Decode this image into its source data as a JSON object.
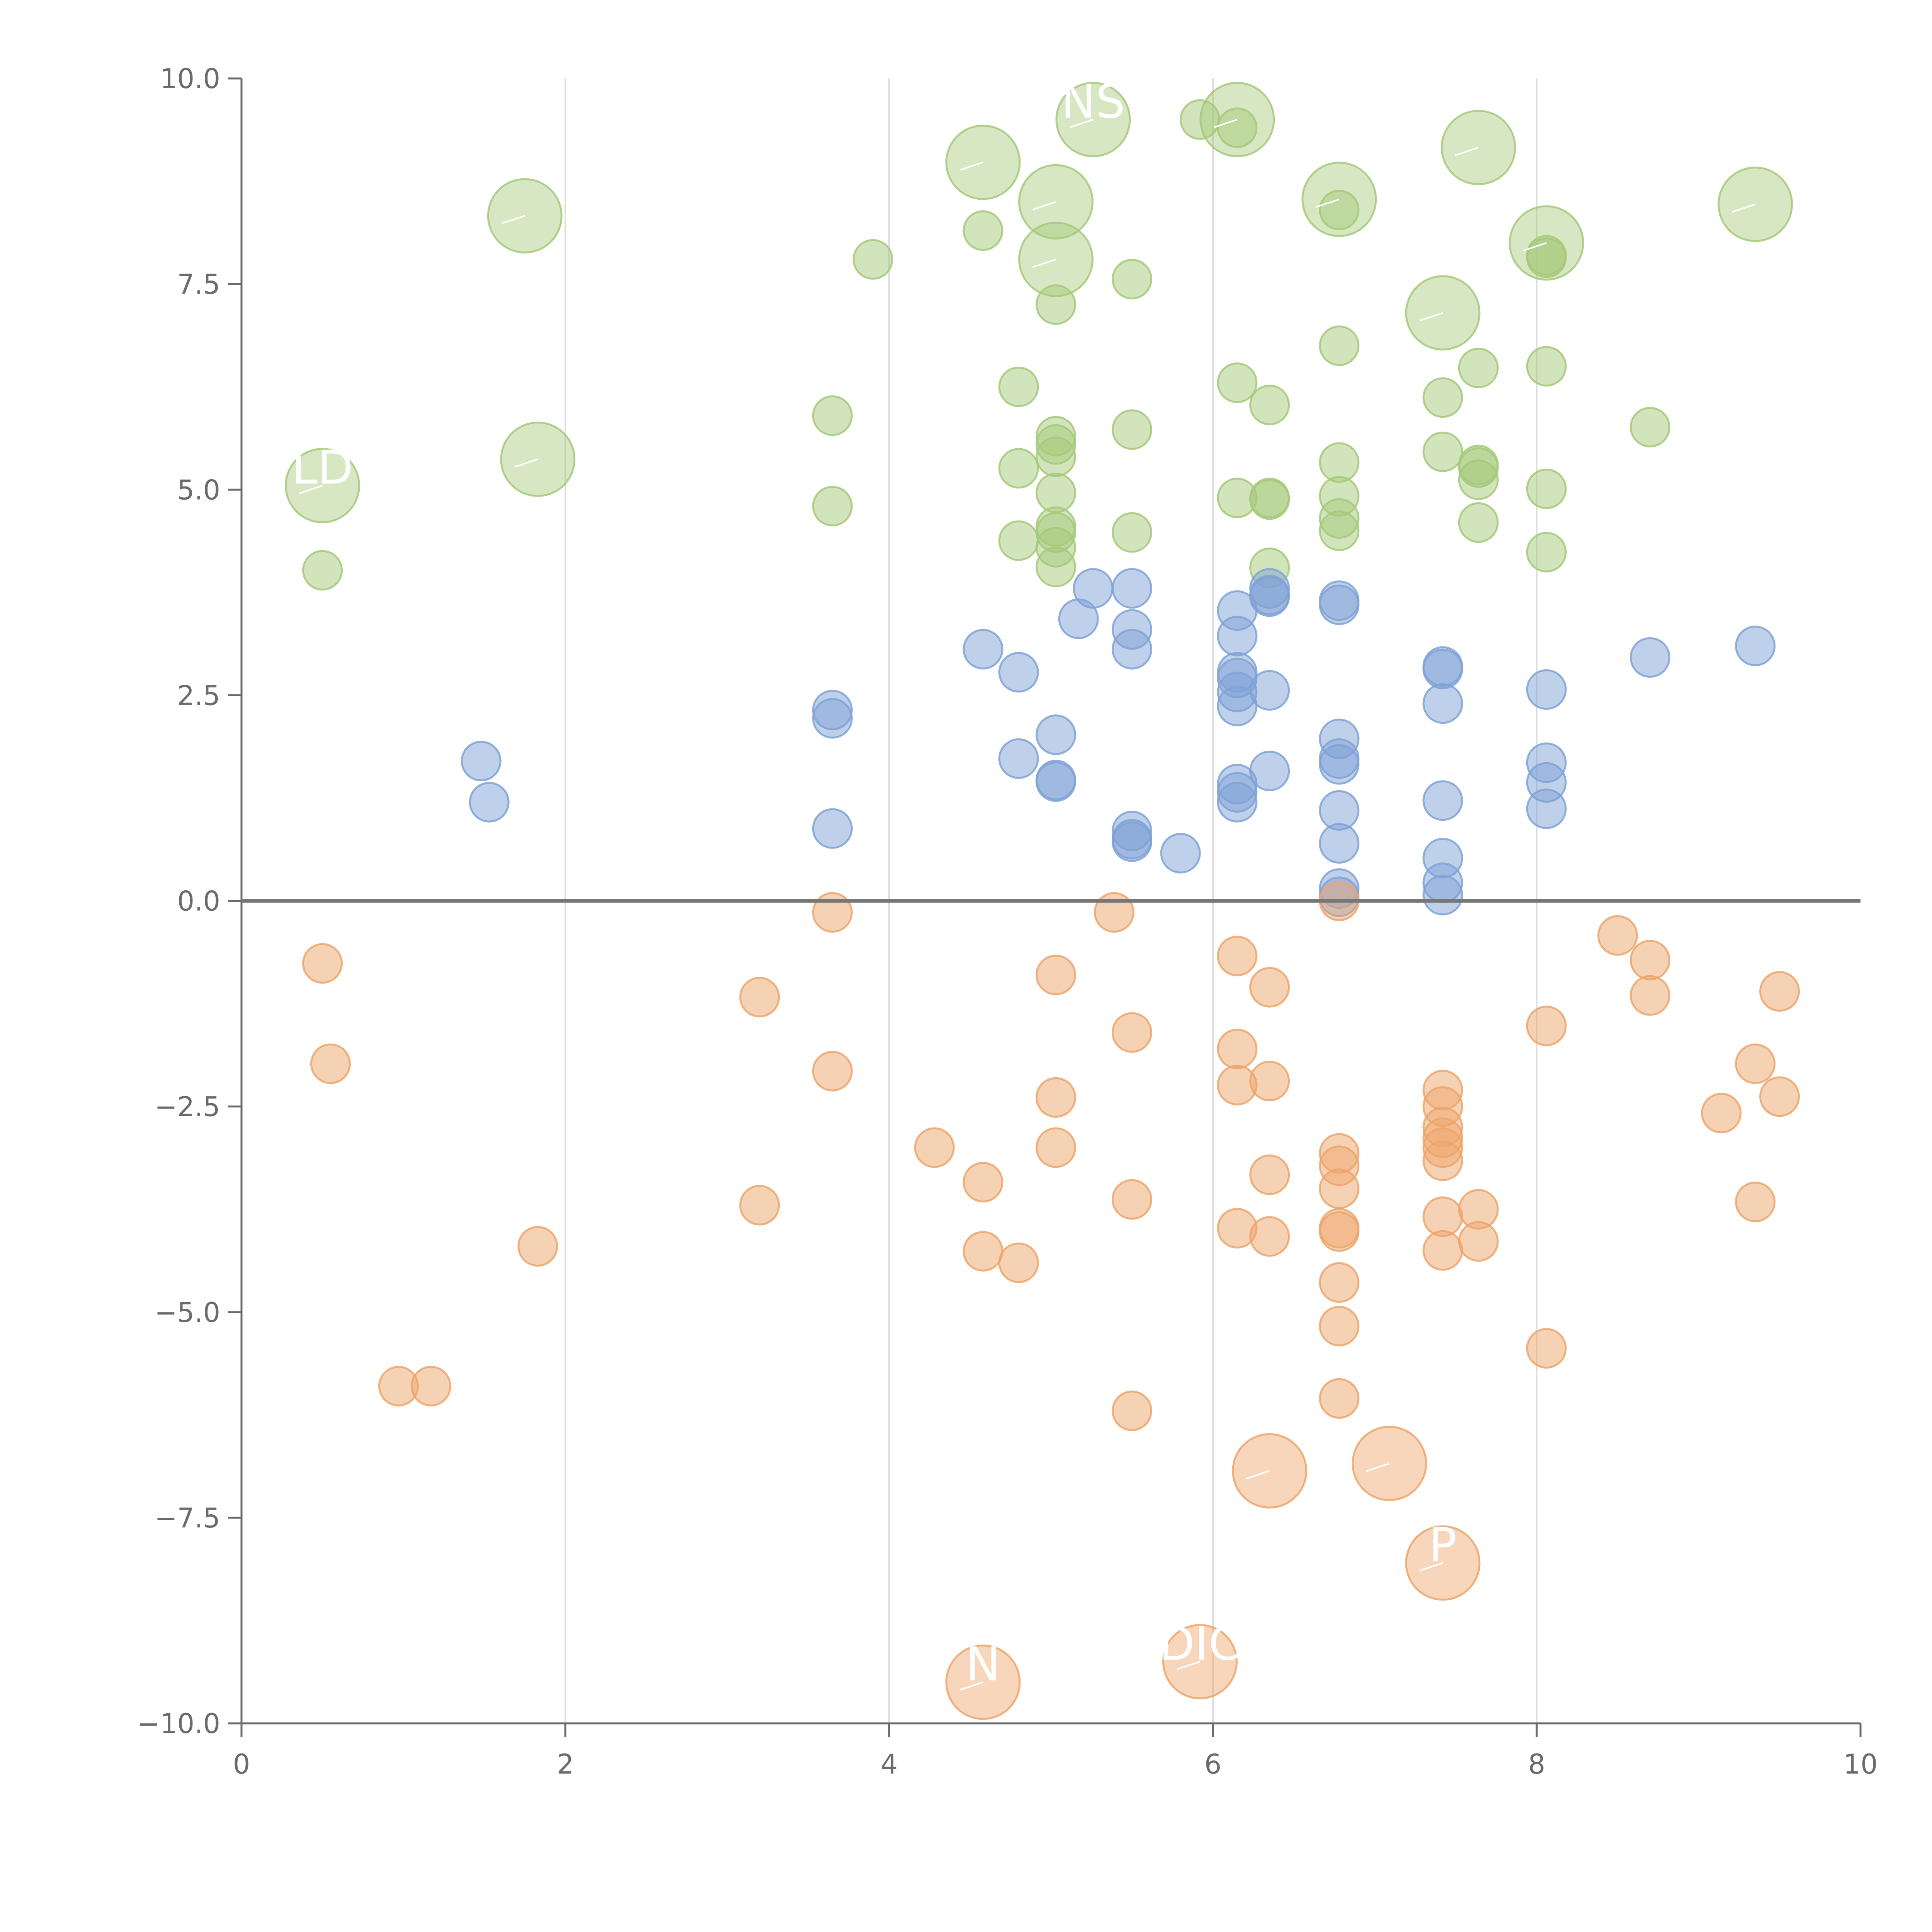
{
  "chart_data": {
    "type": "scatter",
    "title": "",
    "xlabel": "",
    "ylabel": "",
    "xlim": [
      0,
      10
    ],
    "ylim": [
      -10,
      10
    ],
    "x_ticks": [
      0,
      2,
      4,
      6,
      8,
      10
    ],
    "x_tick_labels": [
      "0",
      "2",
      "4",
      "6",
      "8",
      "10"
    ],
    "y_ticks": [
      -10,
      -7.5,
      -5,
      -2.5,
      0,
      2.5,
      5,
      7.5,
      10
    ],
    "y_tick_labels": [
      "−10.0",
      "−7.5",
      "−5.0",
      "−2.5",
      "0.0",
      "2.5",
      "5.0",
      "7.5",
      "10.0"
    ],
    "grid": "vertical",
    "zero_line": true,
    "legend": "none",
    "colors": {
      "green": "#a6c97a",
      "blue": "#7fa2d6",
      "orange": "#eda56b",
      "axis": "#6b6b6b",
      "grid": "#dddddd",
      "zero_line": "#777777"
    },
    "series": [
      {
        "color": "green",
        "points": [
          {
            "x": 0.5,
            "y": 4.02
          },
          {
            "x": 3.65,
            "y": 5.9
          },
          {
            "x": 3.65,
            "y": 4.8
          },
          {
            "x": 3.9,
            "y": 7.8
          },
          {
            "x": 4.58,
            "y": 8.15
          },
          {
            "x": 4.8,
            "y": 6.25
          },
          {
            "x": 4.8,
            "y": 5.26
          },
          {
            "x": 4.8,
            "y": 4.38
          },
          {
            "x": 5.03,
            "y": 7.25
          },
          {
            "x": 5.03,
            "y": 5.65
          },
          {
            "x": 5.03,
            "y": 5.55
          },
          {
            "x": 5.03,
            "y": 5.4
          },
          {
            "x": 5.03,
            "y": 4.96
          },
          {
            "x": 5.03,
            "y": 4.55
          },
          {
            "x": 5.03,
            "y": 4.48
          },
          {
            "x": 5.03,
            "y": 4.3
          },
          {
            "x": 5.03,
            "y": 4.06
          },
          {
            "x": 5.5,
            "y": 7.56
          },
          {
            "x": 5.5,
            "y": 5.73
          },
          {
            "x": 5.5,
            "y": 4.48
          },
          {
            "x": 5.92,
            "y": 9.5
          },
          {
            "x": 6.15,
            "y": 9.4
          },
          {
            "x": 6.15,
            "y": 6.3
          },
          {
            "x": 6.15,
            "y": 4.9
          },
          {
            "x": 6.35,
            "y": 6.03
          },
          {
            "x": 6.35,
            "y": 4.9
          },
          {
            "x": 6.35,
            "y": 4.88
          },
          {
            "x": 6.35,
            "y": 4.05
          },
          {
            "x": 6.78,
            "y": 8.4
          },
          {
            "x": 6.78,
            "y": 6.75
          },
          {
            "x": 6.78,
            "y": 5.33
          },
          {
            "x": 6.78,
            "y": 4.92
          },
          {
            "x": 6.78,
            "y": 4.65
          },
          {
            "x": 6.78,
            "y": 4.5
          },
          {
            "x": 7.42,
            "y": 6.12
          },
          {
            "x": 7.42,
            "y": 5.46
          },
          {
            "x": 7.64,
            "y": 6.48
          },
          {
            "x": 7.64,
            "y": 5.3
          },
          {
            "x": 7.64,
            "y": 5.27
          },
          {
            "x": 7.64,
            "y": 5.12
          },
          {
            "x": 7.64,
            "y": 4.6
          },
          {
            "x": 8.06,
            "y": 7.85
          },
          {
            "x": 8.06,
            "y": 7.82
          },
          {
            "x": 8.06,
            "y": 6.5
          },
          {
            "x": 8.06,
            "y": 5.01
          },
          {
            "x": 8.06,
            "y": 4.24
          },
          {
            "x": 8.7,
            "y": 5.76
          }
        ]
      },
      {
        "color": "blue",
        "points": [
          {
            "x": 1.48,
            "y": 1.7
          },
          {
            "x": 1.53,
            "y": 1.2
          },
          {
            "x": 3.65,
            "y": 2.32
          },
          {
            "x": 3.65,
            "y": 2.22
          },
          {
            "x": 3.65,
            "y": 0.88
          },
          {
            "x": 4.58,
            "y": 3.06
          },
          {
            "x": 4.8,
            "y": 2.78
          },
          {
            "x": 4.8,
            "y": 1.73
          },
          {
            "x": 5.03,
            "y": 2.02
          },
          {
            "x": 5.03,
            "y": 1.47
          },
          {
            "x": 5.03,
            "y": 1.45
          },
          {
            "x": 5.17,
            "y": 3.43
          },
          {
            "x": 5.26,
            "y": 3.8
          },
          {
            "x": 5.5,
            "y": 3.8
          },
          {
            "x": 5.5,
            "y": 3.3
          },
          {
            "x": 5.5,
            "y": 3.06
          },
          {
            "x": 5.5,
            "y": 0.85
          },
          {
            "x": 5.5,
            "y": 0.75
          },
          {
            "x": 5.5,
            "y": 0.72
          },
          {
            "x": 5.8,
            "y": 0.58
          },
          {
            "x": 6.15,
            "y": 3.53
          },
          {
            "x": 6.15,
            "y": 3.22
          },
          {
            "x": 6.15,
            "y": 2.78
          },
          {
            "x": 6.15,
            "y": 2.71
          },
          {
            "x": 6.15,
            "y": 2.54
          },
          {
            "x": 6.15,
            "y": 2.37
          },
          {
            "x": 6.15,
            "y": 1.42
          },
          {
            "x": 6.15,
            "y": 1.32
          },
          {
            "x": 6.15,
            "y": 1.2
          },
          {
            "x": 6.35,
            "y": 3.8
          },
          {
            "x": 6.35,
            "y": 3.72
          },
          {
            "x": 6.35,
            "y": 3.7
          },
          {
            "x": 6.35,
            "y": 2.56
          },
          {
            "x": 6.35,
            "y": 1.58
          },
          {
            "x": 6.78,
            "y": 3.65
          },
          {
            "x": 6.78,
            "y": 3.6
          },
          {
            "x": 6.78,
            "y": 1.97
          },
          {
            "x": 6.78,
            "y": 1.73
          },
          {
            "x": 6.78,
            "y": 1.66
          },
          {
            "x": 6.78,
            "y": 1.1
          },
          {
            "x": 6.78,
            "y": 0.7
          },
          {
            "x": 6.78,
            "y": 0.15
          },
          {
            "x": 6.78,
            "y": 0.05
          },
          {
            "x": 7.42,
            "y": 2.85
          },
          {
            "x": 7.42,
            "y": 2.82
          },
          {
            "x": 7.42,
            "y": 2.4
          },
          {
            "x": 7.42,
            "y": 1.22
          },
          {
            "x": 7.42,
            "y": 0.52
          },
          {
            "x": 7.42,
            "y": 0.22
          },
          {
            "x": 7.42,
            "y": 0.07
          },
          {
            "x": 8.06,
            "y": 2.57
          },
          {
            "x": 8.06,
            "y": 1.68
          },
          {
            "x": 8.06,
            "y": 1.44
          },
          {
            "x": 8.06,
            "y": 1.12
          },
          {
            "x": 8.7,
            "y": 2.96
          },
          {
            "x": 9.35,
            "y": 3.1
          }
        ]
      },
      {
        "color": "orange",
        "points": [
          {
            "x": 0.5,
            "y": -0.76
          },
          {
            "x": 0.55,
            "y": -1.98
          },
          {
            "x": 0.97,
            "y": -5.9
          },
          {
            "x": 1.17,
            "y": -5.9
          },
          {
            "x": 1.83,
            "y": -4.2
          },
          {
            "x": 3.2,
            "y": -1.17
          },
          {
            "x": 3.2,
            "y": -3.7
          },
          {
            "x": 3.65,
            "y": -0.14
          },
          {
            "x": 3.65,
            "y": -2.07
          },
          {
            "x": 4.28,
            "y": -3.0
          },
          {
            "x": 4.58,
            "y": -3.42
          },
          {
            "x": 4.58,
            "y": -4.26
          },
          {
            "x": 4.8,
            "y": -4.4
          },
          {
            "x": 5.03,
            "y": -0.9
          },
          {
            "x": 5.03,
            "y": -2.39
          },
          {
            "x": 5.03,
            "y": -3.0
          },
          {
            "x": 5.39,
            "y": -0.14
          },
          {
            "x": 5.5,
            "y": -1.6
          },
          {
            "x": 5.5,
            "y": -3.63
          },
          {
            "x": 5.5,
            "y": -6.2
          },
          {
            "x": 6.15,
            "y": -0.67
          },
          {
            "x": 6.15,
            "y": -1.8
          },
          {
            "x": 6.15,
            "y": -2.24
          },
          {
            "x": 6.15,
            "y": -3.98
          },
          {
            "x": 6.35,
            "y": -1.05
          },
          {
            "x": 6.35,
            "y": -2.19
          },
          {
            "x": 6.35,
            "y": -3.33
          },
          {
            "x": 6.35,
            "y": -4.08
          },
          {
            "x": 6.78,
            "y": 0.0
          },
          {
            "x": 6.78,
            "y": -3.07
          },
          {
            "x": 6.78,
            "y": -3.22
          },
          {
            "x": 6.78,
            "y": -3.5
          },
          {
            "x": 6.78,
            "y": -3.98
          },
          {
            "x": 6.78,
            "y": -4.02
          },
          {
            "x": 6.78,
            "y": -4.64
          },
          {
            "x": 6.78,
            "y": -5.17
          },
          {
            "x": 6.78,
            "y": -6.05
          },
          {
            "x": 7.42,
            "y": -2.3
          },
          {
            "x": 7.42,
            "y": -2.5
          },
          {
            "x": 7.42,
            "y": -2.75
          },
          {
            "x": 7.42,
            "y": -2.88
          },
          {
            "x": 7.42,
            "y": -3.0
          },
          {
            "x": 7.42,
            "y": -3.16
          },
          {
            "x": 7.42,
            "y": -3.84
          },
          {
            "x": 7.42,
            "y": -4.25
          },
          {
            "x": 7.64,
            "y": -3.75
          },
          {
            "x": 7.64,
            "y": -4.14
          },
          {
            "x": 8.06,
            "y": -1.52
          },
          {
            "x": 8.06,
            "y": -5.44
          },
          {
            "x": 8.5,
            "y": -0.42
          },
          {
            "x": 8.7,
            "y": -0.72
          },
          {
            "x": 8.7,
            "y": -1.15
          },
          {
            "x": 9.14,
            "y": -2.58
          },
          {
            "x": 9.35,
            "y": -1.98
          },
          {
            "x": 9.35,
            "y": -3.66
          },
          {
            "x": 9.5,
            "y": -1.1
          },
          {
            "x": 9.5,
            "y": -2.38
          }
        ]
      }
    ],
    "labeled_bubbles": [
      {
        "color": "green",
        "x": 0.5,
        "y": 5.05,
        "text": "LD"
      },
      {
        "color": "green",
        "x": 1.75,
        "y": 8.33,
        "text": ""
      },
      {
        "color": "green",
        "x": 1.83,
        "y": 5.37,
        "text": ""
      },
      {
        "color": "green",
        "x": 4.58,
        "y": 8.98,
        "text": ""
      },
      {
        "color": "green",
        "x": 5.03,
        "y": 8.5,
        "text": ""
      },
      {
        "color": "green",
        "x": 5.03,
        "y": 7.8,
        "text": ""
      },
      {
        "color": "green",
        "x": 5.26,
        "y": 9.5,
        "text": "NS"
      },
      {
        "color": "green",
        "x": 6.15,
        "y": 9.5,
        "text": ""
      },
      {
        "color": "green",
        "x": 6.78,
        "y": 8.53,
        "text": ""
      },
      {
        "color": "green",
        "x": 7.42,
        "y": 7.15,
        "text": ""
      },
      {
        "color": "green",
        "x": 7.64,
        "y": 9.16,
        "text": ""
      },
      {
        "color": "green",
        "x": 8.06,
        "y": 8.0,
        "text": ""
      },
      {
        "color": "green",
        "x": 9.35,
        "y": 8.47,
        "text": ""
      },
      {
        "color": "orange",
        "x": 6.35,
        "y": -6.93,
        "text": ""
      },
      {
        "color": "orange",
        "x": 7.09,
        "y": -6.84,
        "text": ""
      },
      {
        "color": "orange",
        "x": 7.42,
        "y": -8.05,
        "text": "P"
      },
      {
        "color": "orange",
        "x": 4.58,
        "y": -9.5,
        "text": "N"
      },
      {
        "color": "orange",
        "x": 5.92,
        "y": -9.25,
        "text": "DIC"
      }
    ]
  }
}
